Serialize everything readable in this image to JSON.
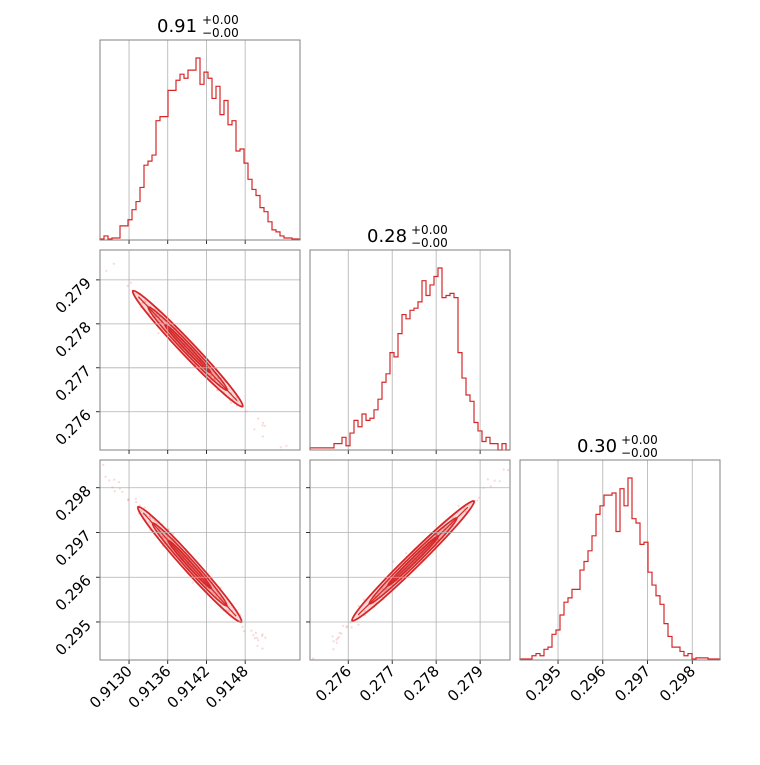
{
  "colors": {
    "series": "#d62728",
    "grid": "#b0b0b0",
    "frame": "#808080",
    "text": "#000000",
    "background": "#ffffff"
  },
  "chart_data": [
    {
      "type": "histogram",
      "id": "hist-p1",
      "title_value": "0.91",
      "title_plus": "+0.00",
      "title_minus": "−0.00",
      "xlim": [
        0.91255,
        0.91565
      ],
      "xticks": [
        0.913,
        0.9136,
        0.9142,
        0.9148
      ],
      "counts": [
        0.5,
        2,
        0.5,
        1,
        1,
        7,
        7,
        10,
        15,
        19,
        26,
        37,
        39,
        42,
        59,
        61,
        61,
        74,
        74,
        79,
        82,
        80,
        84,
        84,
        90,
        77,
        83,
        80,
        70,
        76,
        62,
        69,
        57,
        59,
        44,
        45,
        38,
        30,
        25,
        22,
        16,
        14,
        9,
        5,
        4,
        2,
        1,
        1,
        0.5,
        0.5
      ]
    },
    {
      "type": "histogram",
      "id": "hist-p2",
      "title_value": "0.28",
      "title_plus": "+0.00",
      "title_minus": "−0.00",
      "xlim": [
        0.27513,
        0.27968
      ],
      "xticks": [
        0.276,
        0.277,
        0.278,
        0.279
      ],
      "counts": [
        1,
        1,
        1,
        1,
        1,
        1,
        3,
        3,
        6,
        2,
        8,
        14,
        11,
        17,
        14,
        15,
        19,
        24,
        32,
        36,
        46,
        44,
        55,
        64,
        62,
        66,
        67,
        70,
        80,
        73,
        78,
        82,
        86,
        72,
        73,
        74,
        72,
        46,
        34,
        26,
        23,
        13,
        9,
        4,
        6,
        3,
        3,
        0,
        3,
        0
      ]
    },
    {
      "type": "histogram",
      "id": "hist-p3",
      "title_value": "0.30",
      "title_plus": "+0.00",
      "title_minus": "−0.00",
      "xlim": [
        0.29415,
        0.29862
      ],
      "xticks": [
        0.295,
        0.296,
        0.297,
        0.298
      ],
      "counts": [
        0.5,
        0.5,
        0.5,
        2,
        3,
        2,
        5,
        6,
        12,
        14,
        21,
        27,
        29,
        33,
        33,
        42,
        46,
        51,
        58,
        68,
        72,
        77,
        77,
        78,
        60,
        80,
        72,
        85,
        66,
        64,
        54,
        55,
        41,
        35,
        30,
        26,
        17,
        11,
        6,
        6,
        4,
        2,
        3,
        0.5,
        1,
        1,
        1,
        0.5,
        0.5,
        0.5
      ]
    },
    {
      "type": "scatter_contour",
      "id": "2d-p1-p2",
      "xlim": [
        0.91255,
        0.91565
      ],
      "ylim": [
        0.27513,
        0.27968
      ],
      "yticks": [
        0.276,
        0.277,
        0.278,
        0.279
      ],
      "correlation": -0.985,
      "contour_levels": [
        0.39,
        0.86,
        1.39
      ],
      "outline_from": [
        0.91306,
        0.27875
      ],
      "outline_to": [
        0.91476,
        0.27612
      ]
    },
    {
      "type": "scatter_contour",
      "id": "2d-p1-p3",
      "xlim": [
        0.91255,
        0.91565
      ],
      "ylim": [
        0.29415,
        0.29862
      ],
      "xticks": [
        0.913,
        0.9136,
        0.9142,
        0.9148
      ],
      "xtick_labels": [
        "0.9130",
        "0.9136",
        "0.9142",
        "0.9148"
      ],
      "yticks": [
        0.295,
        0.296,
        0.297,
        0.298
      ],
      "correlation": -0.99,
      "contour_levels": [
        0.39,
        0.86,
        1.39
      ],
      "outline_from": [
        0.91314,
        0.29757
      ],
      "outline_to": [
        0.91474,
        0.295
      ]
    },
    {
      "type": "scatter_contour",
      "id": "2d-p2-p3",
      "xlim": [
        0.27513,
        0.27968
      ],
      "ylim": [
        0.29415,
        0.29862
      ],
      "xticks": [
        0.276,
        0.277,
        0.278,
        0.279
      ],
      "correlation": 0.98,
      "contour_levels": [
        0.39,
        0.86,
        1.39
      ],
      "outline_from": [
        0.27609,
        0.29503
      ],
      "outline_to": [
        0.27886,
        0.2977
      ]
    },
    {
      "type": "axis_labels",
      "id": "x-p3",
      "xlim": [
        0.29415,
        0.29862
      ],
      "xticks": [
        0.295,
        0.296,
        0.297,
        0.298
      ]
    }
  ]
}
